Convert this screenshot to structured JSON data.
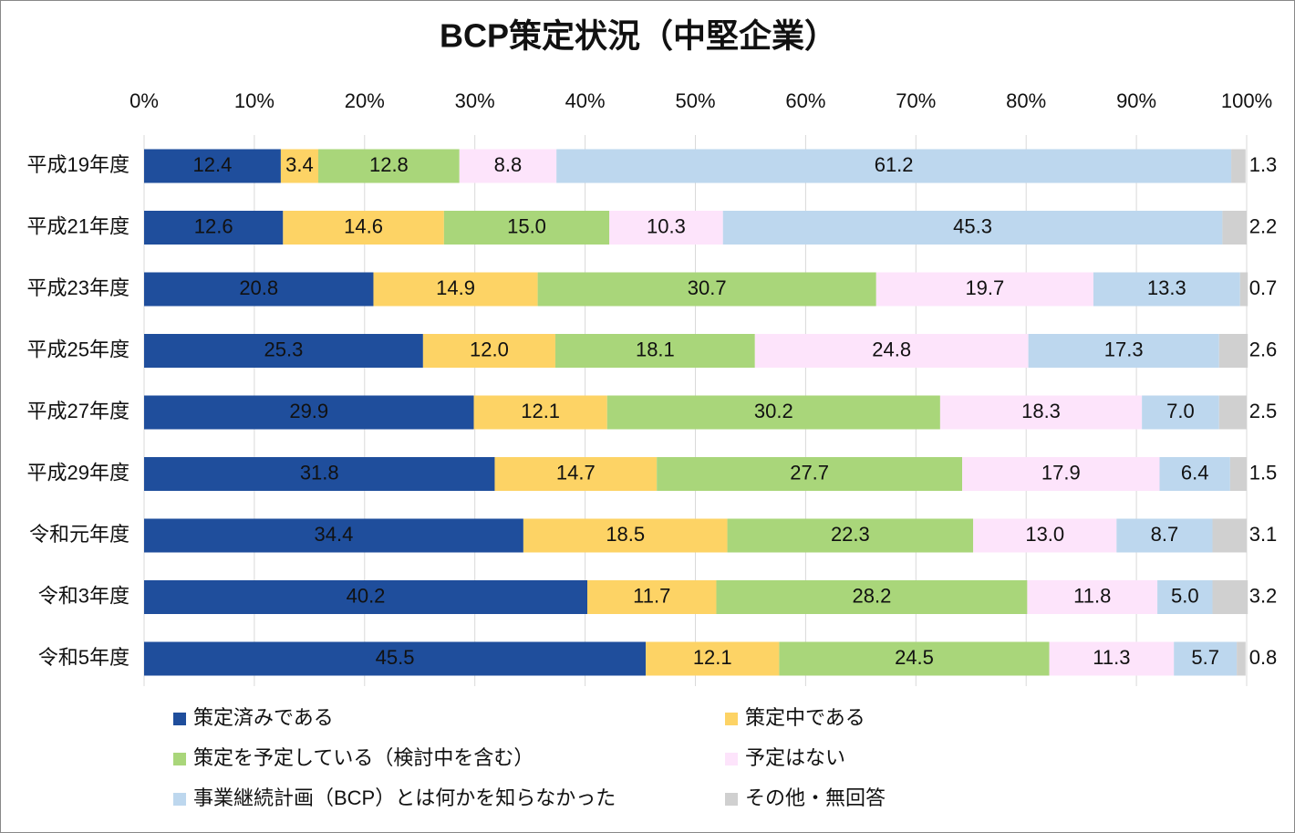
{
  "chart_data": {
    "type": "stacked_barh",
    "title": "BCP策定状況（中堅企業）",
    "categories": [
      "平成19年度",
      "平成21年度",
      "平成23年度",
      "平成25年度",
      "平成27年度",
      "平成29年度",
      "令和元年度",
      "令和3年度",
      "令和5年度"
    ],
    "xlim": [
      0,
      100
    ],
    "xticks": [
      {
        "value": 0,
        "label": "0%"
      },
      {
        "value": 10,
        "label": "10%"
      },
      {
        "value": 20,
        "label": "20%"
      },
      {
        "value": 30,
        "label": "30%"
      },
      {
        "value": 40,
        "label": "40%"
      },
      {
        "value": 50,
        "label": "50%"
      },
      {
        "value": 60,
        "label": "60%"
      },
      {
        "value": 70,
        "label": "70%"
      },
      {
        "value": 80,
        "label": "80%"
      },
      {
        "value": 90,
        "label": "90%"
      },
      {
        "value": 100,
        "label": "100%"
      }
    ],
    "grid": true,
    "series": [
      {
        "name": "策定済みである",
        "color": "#1f4e9c",
        "values": [
          12.4,
          12.6,
          20.8,
          25.3,
          29.9,
          31.8,
          34.4,
          40.2,
          45.5
        ],
        "value_labels": [
          "12.4",
          "12.6",
          "20.8",
          "25.3",
          "29.9",
          "31.8",
          "34.4",
          "40.2",
          "45.5"
        ]
      },
      {
        "name": "策定中である",
        "color": "#fdd365",
        "values": [
          3.4,
          14.6,
          14.9,
          12.0,
          12.1,
          14.7,
          18.5,
          11.7,
          12.1
        ],
        "value_labels": [
          "3.4",
          "14.6",
          "14.9",
          "12.0",
          "12.1",
          "14.7",
          "18.5",
          "11.7",
          "12.1"
        ]
      },
      {
        "name": "策定を予定している（検討中を含む）",
        "color": "#a9d67a",
        "values": [
          12.8,
          15.0,
          30.7,
          18.1,
          30.2,
          27.7,
          22.3,
          28.2,
          24.5
        ],
        "value_labels": [
          "12.8",
          "15.0",
          "30.7",
          "18.1",
          "30.2",
          "27.7",
          "22.3",
          "28.2",
          "24.5"
        ]
      },
      {
        "name": "予定はない",
        "color": "#fde4fb",
        "values": [
          8.8,
          10.3,
          19.7,
          24.8,
          18.3,
          17.9,
          13.0,
          11.8,
          11.3
        ],
        "value_labels": [
          "8.8",
          "10.3",
          "19.7",
          "24.8",
          "18.3",
          "17.9",
          "13.0",
          "11.8",
          "11.3"
        ]
      },
      {
        "name": "事業継続計画（BCP）とは何かを知らなかった",
        "color": "#bdd7ee",
        "values": [
          61.2,
          45.3,
          13.3,
          17.3,
          7.0,
          6.4,
          8.7,
          5.0,
          5.7
        ],
        "value_labels": [
          "61.2",
          "45.3",
          "13.3",
          "17.3",
          "7.0",
          "6.4",
          "8.7",
          "5.0",
          "5.7"
        ]
      },
      {
        "name": "その他・無回答",
        "color": "#d0d0d0",
        "values": [
          1.3,
          2.2,
          0.7,
          2.6,
          2.5,
          1.5,
          3.1,
          3.2,
          0.8
        ],
        "value_labels": [
          "1.3",
          "2.2",
          "0.7",
          "2.6",
          "2.5",
          "1.5",
          "3.1",
          "3.2",
          "0.8"
        ]
      }
    ]
  }
}
